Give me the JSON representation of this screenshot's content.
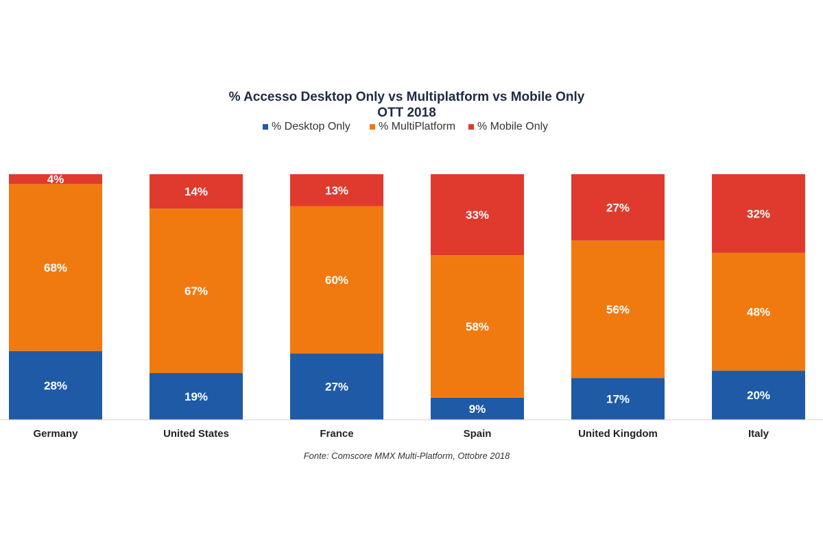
{
  "chart_data": {
    "type": "bar",
    "stacked": true,
    "title": "% Accesso Desktop Only vs Multiplatform vs Mobile Only",
    "subtitle": "OTT 2018",
    "categories": [
      "Germany",
      "United States",
      "France",
      "Spain",
      "United Kingdom",
      "Italy"
    ],
    "series": [
      {
        "name": "% Desktop Only",
        "color": "#1f5aa6",
        "values": [
          28,
          19,
          27,
          9,
          17,
          20
        ],
        "labels": [
          "28%",
          "19%",
          "27%",
          "9%",
          "17%",
          "20%"
        ]
      },
      {
        "name": "% MultiPlatform",
        "color": "#f07a10",
        "values": [
          68,
          67,
          60,
          58,
          56,
          48
        ],
        "labels": [
          "68%",
          "67%",
          "60%",
          "58%",
          "56%",
          "48%"
        ]
      },
      {
        "name": "% Mobile Only",
        "color": "#e03a2e",
        "values": [
          4,
          14,
          13,
          33,
          27,
          32
        ],
        "labels": [
          "4%",
          "14%",
          "13%",
          "33%",
          "27%",
          "32%"
        ]
      }
    ],
    "legend_position": "top",
    "grid": false,
    "source": "Fonte: Comscore MMX Multi-Platform, Ottobre 2018"
  }
}
